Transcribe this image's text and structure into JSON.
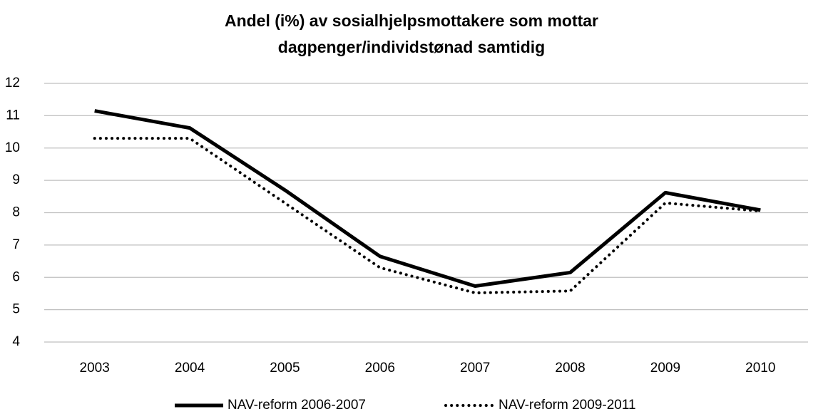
{
  "chart_data": {
    "type": "line",
    "title": [
      "Andel (i%) av sosialhjelpsmottakere som mottar",
      "dagpenger/individstønad samtidig"
    ],
    "categories": [
      "2003",
      "2004",
      "2005",
      "2006",
      "2007",
      "2008",
      "2009",
      "2010"
    ],
    "series": [
      {
        "name": "NAV-reform 2006-2007",
        "color": "#000000",
        "dash": "solid",
        "values": [
          11.15,
          10.62,
          8.7,
          6.65,
          5.73,
          6.15,
          8.62,
          8.08
        ]
      },
      {
        "name": "NAV-reform 2009-2011",
        "color": "#000000",
        "dash": "dotted",
        "values": [
          10.3,
          10.3,
          8.3,
          6.3,
          5.52,
          5.58,
          8.3,
          8.05
        ]
      }
    ],
    "ylim": [
      4,
      12
    ],
    "yticks": [
      4,
      5,
      6,
      7,
      8,
      9,
      10,
      11,
      12
    ],
    "grid": true,
    "legend": "bottom"
  }
}
